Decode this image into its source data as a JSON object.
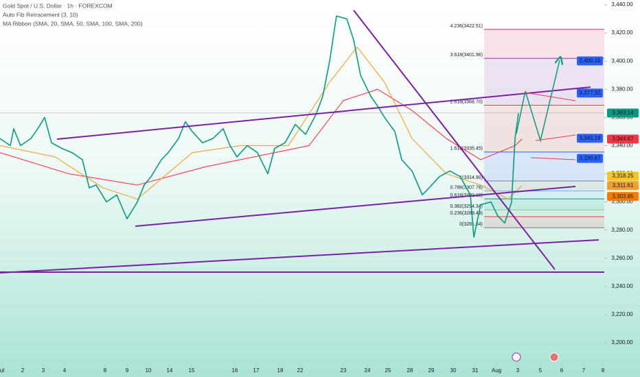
{
  "chart_data": {
    "type": "line",
    "title": "Gold Spot / U.S. Dollar · 1h · FOREXCOM",
    "indicators": [
      "Auto Fib Retracement (3, 10)",
      "MA Ribbon (SMA, 20, SMA, 50, SMA, 100, SMA, 200)"
    ],
    "xlim": [
      0,
      88
    ],
    "ylim": [
      3200,
      3440
    ],
    "xticks": [
      {
        "value": 0.3,
        "label": "ul"
      },
      3.3,
      6.3,
      9.4,
      15.3,
      18.5,
      21.6,
      24.7,
      27.9,
      34.2,
      37.3,
      40.8,
      43.7,
      50,
      53.5,
      56.5,
      59.7,
      62.8,
      66,
      69.2,
      {
        "value": 72.3,
        "label": "Aug"
      },
      75.4,
      78.7,
      81.8,
      85,
      87.8
    ],
    "xtick_labels": [
      "ul",
      "2",
      "3",
      "4",
      "8",
      "9",
      "10",
      "14",
      "15",
      "16",
      "17",
      "18",
      "22",
      "23",
      "24",
      "25",
      "28",
      "29",
      "30",
      "31",
      "Aug",
      "3",
      "5",
      "6",
      "7",
      "8"
    ],
    "yticks": [
      {
        "value": 3200,
        "label": "3,200.00"
      },
      {
        "value": 3220,
        "label": "3,220.00"
      },
      {
        "value": 3240,
        "label": "3,240.00"
      },
      {
        "value": 3260,
        "label": "3,260.00"
      },
      {
        "value": 3280,
        "label": "3,280.00"
      },
      {
        "value": 3300,
        "label": "3,300.00"
      },
      {
        "value": 3320,
        "label": "3,320.00"
      },
      {
        "value": 3340,
        "label": "3,340.00"
      },
      {
        "value": 3360,
        "label": "3,360.00"
      },
      {
        "value": 3380,
        "label": "3,380.00"
      },
      {
        "value": 3400,
        "label": "3,400.00"
      },
      {
        "value": 3420,
        "label": "3,420.00"
      },
      {
        "value": 3440,
        "label": "3,440.00"
      }
    ],
    "series": [
      {
        "color": "#f23645",
        "x": [
          0,
          10,
          20,
          30,
          40,
          45,
          50,
          55,
          60,
          65,
          70,
          75,
          76
        ],
        "values": [
          3335,
          3320,
          3312,
          3325,
          3335,
          3340,
          3372,
          3380,
          3365,
          3345,
          3330,
          3340,
          3344.67
        ]
      },
      {
        "color": "#f0a030",
        "x": [
          0,
          8,
          15,
          20,
          28,
          35,
          42,
          48,
          52,
          56,
          60,
          65,
          70,
          74,
          76
        ],
        "values": [
          3340,
          3332,
          3310,
          3302,
          3335,
          3340,
          3340,
          3385,
          3410,
          3385,
          3345,
          3320,
          3312,
          3302,
          3311.61
        ]
      },
      {
        "color": "#089981",
        "x": [
          0,
          1.5,
          2,
          3,
          4.5,
          5.5,
          6.5,
          7.5,
          9,
          10.5,
          12,
          13,
          14,
          15.5,
          17,
          18.5,
          20,
          21,
          22,
          23.5,
          24.5,
          26,
          27,
          28,
          29.5,
          31,
          32.5,
          33.5,
          34.5,
          36,
          37.5,
          39,
          40,
          41.5,
          43,
          44.5,
          46,
          47,
          48,
          49,
          50.5,
          51.5,
          52.5,
          54,
          55,
          56,
          57.5,
          58.5,
          60,
          61.5,
          62.5,
          64,
          65.5,
          67,
          68.5,
          69,
          70,
          71.5,
          72.5,
          73.5,
          74.5,
          75,
          75.5
        ],
        "values": [
          3345,
          3340,
          3352,
          3340,
          3345,
          3352,
          3360,
          3342,
          3338,
          3335,
          3330,
          3310,
          3312,
          3300,
          3305,
          3288,
          3300,
          3312,
          3318,
          3330,
          3335,
          3345,
          3357,
          3350,
          3342,
          3345,
          3352,
          3340,
          3332,
          3340,
          3335,
          3320,
          3338,
          3342,
          3355,
          3348,
          3362,
          3375,
          3400,
          3432,
          3430,
          3415,
          3390,
          3375,
          3368,
          3360,
          3350,
          3330,
          3322,
          3305,
          3310,
          3318,
          3322,
          3318,
          3305,
          3275,
          3298,
          3300,
          3290,
          3285,
          3300,
          3345,
          3363
        ]
      }
    ],
    "fib_levels": [
      {
        "value": 3422.51,
        "label": "4.236(3422.51)",
        "color": "#e91e63"
      },
      {
        "value": 3401.96,
        "label": "3.618(3401.96)",
        "color": "#9c27b0"
      },
      {
        "value": 3368.7,
        "label": "2.618(3368.70)",
        "color": "#f23645"
      },
      {
        "value": 3335.45,
        "label": "1.618(3335.45)",
        "color": "#2962ff"
      },
      {
        "value": 3314.9,
        "label": "1(3314.90)",
        "color": "#787b86"
      },
      {
        "value": 3307.78,
        "label": "0.786(3307.78)",
        "color": "#64b5f6"
      },
      {
        "value": 3302.19,
        "label": "0.618(3302.19)",
        "color": "#089981"
      },
      {
        "value": 3294.34,
        "label": "0.382(3294.34)",
        "color": "#81c784"
      },
      {
        "value": 3289.49,
        "label": "0.236(3289.49)",
        "color": "#f23645"
      },
      {
        "value": 3281.64,
        "label": "0(3281.64)",
        "color": "#787b86"
      }
    ],
    "drawing_tags": [
      {
        "value": 3400.16,
        "label": "3,400.16",
        "color": "#2962ff"
      },
      {
        "value": 3377.32,
        "label": "3,377.32",
        "color": "#2962ff"
      },
      {
        "value": 3345.19,
        "label": "3,345.19",
        "color": "#2962ff"
      },
      {
        "value": 3330.87,
        "label": "3,330.87",
        "color": "#2962ff"
      }
    ],
    "axis_tags": [
      {
        "value": 3363.14,
        "label": "3,363.14",
        "color": "#089981"
      },
      {
        "value": 3344.67,
        "label": "3,344.67",
        "color": "#f23645"
      },
      {
        "value": 3318.25,
        "label": "3,318.25",
        "color": "#f5c623"
      },
      {
        "value": 3311.61,
        "label": "3,311.61",
        "color": "#f0a030"
      },
      {
        "value": 3303.85,
        "label": "3,303.85",
        "color": "#f57c00"
      }
    ]
  }
}
